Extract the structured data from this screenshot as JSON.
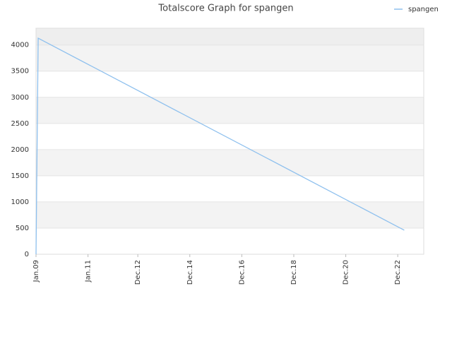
{
  "chart_data": {
    "type": "line",
    "title": "Totalscore Graph for spangen",
    "x": [
      "2009-01",
      "2009-02",
      "2023-03"
    ],
    "series": [
      {
        "name": "spangen",
        "color": "#8ec0ee",
        "values": [
          0,
          4130,
          460
        ]
      }
    ],
    "xlim": [
      "2009-01",
      "2023-12"
    ],
    "xticks": [
      {
        "value": "2009-01",
        "label": "Jan.09"
      },
      {
        "value": "2011-01",
        "label": "Jan.11"
      },
      {
        "value": "2012-12",
        "label": "Dec.12"
      },
      {
        "value": "2014-12",
        "label": "Dec.14"
      },
      {
        "value": "2016-12",
        "label": "Dec.16"
      },
      {
        "value": "2018-12",
        "label": "Dec.18"
      },
      {
        "value": "2020-12",
        "label": "Dec.20"
      },
      {
        "value": "2022-12",
        "label": "Dec.22"
      }
    ],
    "ylim": [
      0,
      4320
    ],
    "yticks": [
      0,
      500,
      1000,
      1500,
      2000,
      2500,
      3000,
      3500,
      4000
    ],
    "grid": true,
    "legend": "top-right"
  }
}
